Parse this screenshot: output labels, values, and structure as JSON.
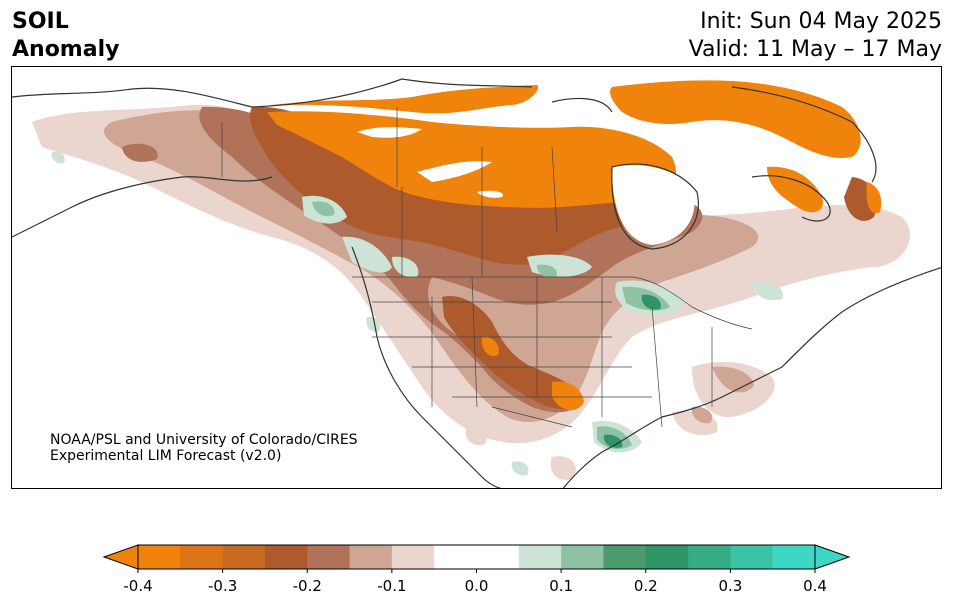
{
  "header": {
    "title_line1": "SOIL",
    "title_line2": "Anomaly",
    "init_line": "Init: Sun 04 May 2025",
    "valid_line": "Valid: 11 May – 17 May"
  },
  "credit": {
    "line1": "NOAA/PSL and University of Colorado/CIRES",
    "line2": "Experimental LIM Forecast (v2.0)"
  },
  "colorbar": {
    "ticks": [
      "-0.4",
      "-0.3",
      "-0.2",
      "-0.1",
      "0.0",
      "0.1",
      "0.2",
      "0.3",
      "0.4"
    ],
    "bins": [
      {
        "from": -0.4,
        "to": -0.35,
        "color": "#f0830b"
      },
      {
        "from": -0.35,
        "to": -0.3,
        "color": "#db7416"
      },
      {
        "from": -0.3,
        "to": -0.25,
        "color": "#c76a22"
      },
      {
        "from": -0.25,
        "to": -0.2,
        "color": "#ad5a2d"
      },
      {
        "from": -0.2,
        "to": -0.15,
        "color": "#b0735a"
      },
      {
        "from": -0.15,
        "to": -0.1,
        "color": "#cfa594"
      },
      {
        "from": -0.1,
        "to": -0.05,
        "color": "#ead6cf"
      },
      {
        "from": -0.05,
        "to": 0.05,
        "color": "#ffffff"
      },
      {
        "from": 0.05,
        "to": 0.1,
        "color": "#cde3d6"
      },
      {
        "from": 0.1,
        "to": 0.15,
        "color": "#8fc2a5"
      },
      {
        "from": 0.15,
        "to": 0.2,
        "color": "#4c9b6e"
      },
      {
        "from": 0.2,
        "to": 0.25,
        "color": "#2f9566"
      },
      {
        "from": 0.25,
        "to": 0.3,
        "color": "#35ac84"
      },
      {
        "from": 0.3,
        "to": 0.35,
        "color": "#3ac3a4"
      },
      {
        "from": 0.35,
        "to": 0.4,
        "color": "#3dd8c4"
      }
    ],
    "extend_low_color": "#f0830b",
    "extend_high_color": "#3dd8c4"
  }
}
